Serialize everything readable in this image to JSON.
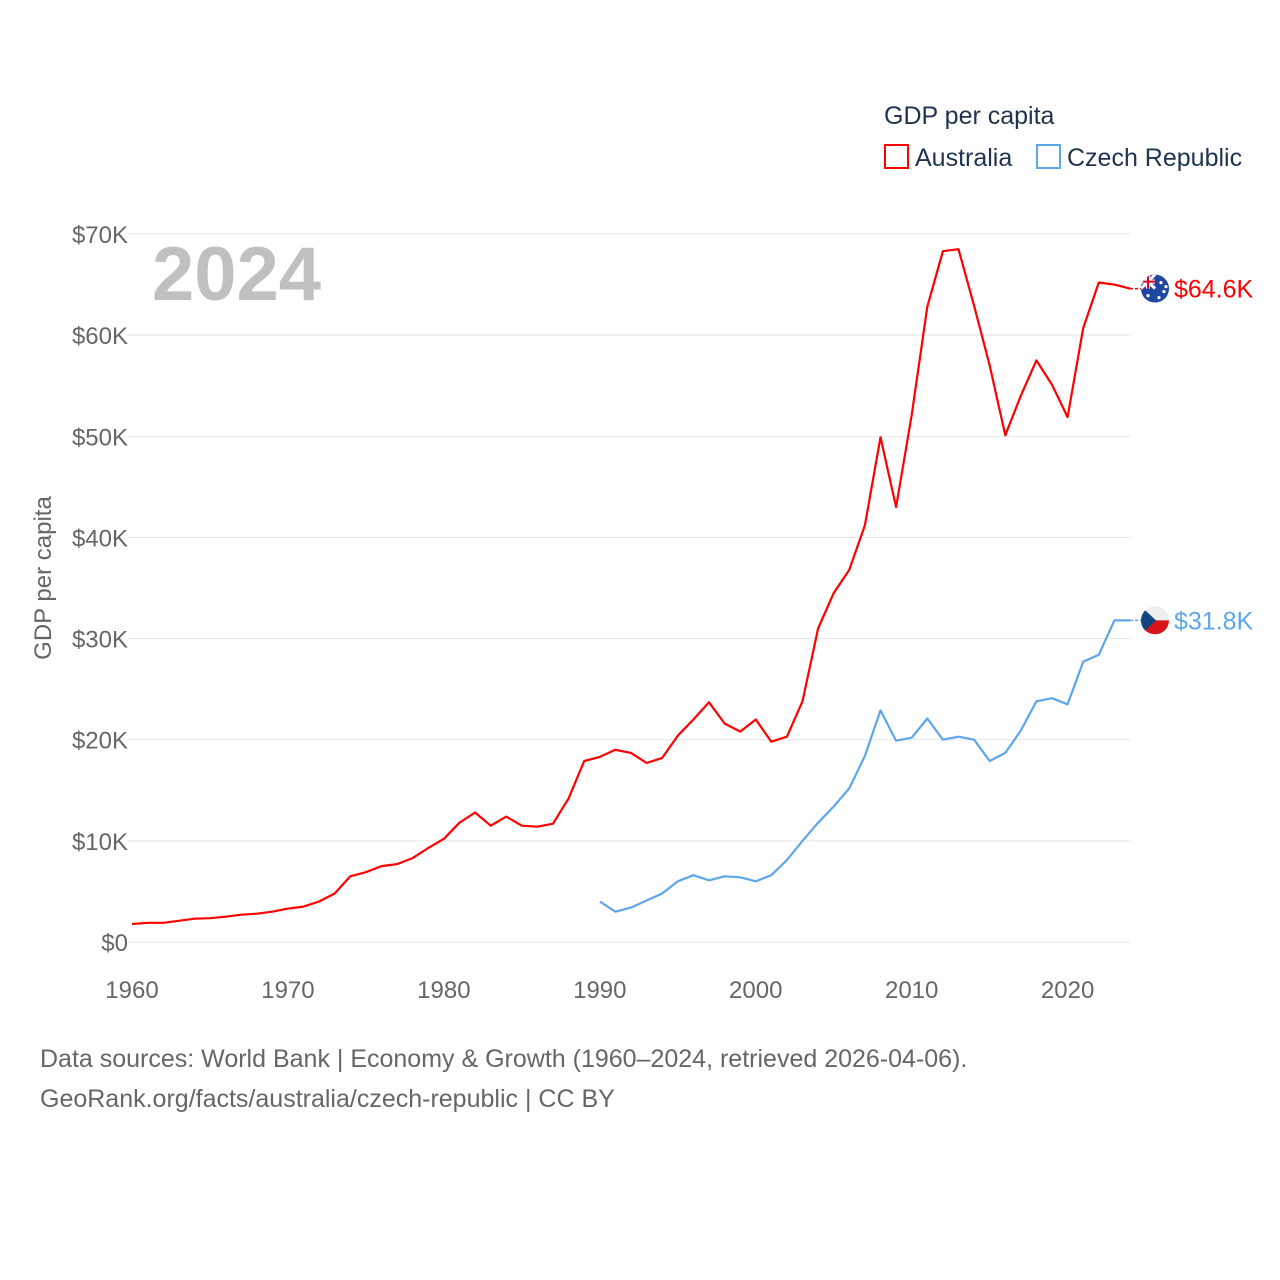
{
  "chart_data": {
    "type": "line",
    "title": "GDP per capita",
    "ylabel": "GDP per capita",
    "xlabel": "",
    "year_label": "2024",
    "xlim": [
      1960,
      2024
    ],
    "ylim": [
      0,
      70000
    ],
    "x_ticks": [
      "1960",
      "1970",
      "1980",
      "1990",
      "2000",
      "2010",
      "2020"
    ],
    "x_tick_values": [
      1960,
      1970,
      1980,
      1990,
      2000,
      2010,
      2020
    ],
    "y_ticks": [
      "$0",
      "$10K",
      "$20K",
      "$30K",
      "$40K",
      "$50K",
      "$60K",
      "$70K"
    ],
    "y_tick_values": [
      0,
      10000,
      20000,
      30000,
      40000,
      50000,
      60000,
      70000
    ],
    "grid": true,
    "legend_position": "top-right",
    "series": [
      {
        "name": "Australia",
        "color": "#ff0000",
        "end_label": "$64.6K",
        "flag": "australia-flag",
        "start_year": 1960,
        "values": [
          1.78,
          1.9,
          1.9,
          2.1,
          2.3,
          2.35,
          2.5,
          2.7,
          2.8,
          3.0,
          3.3,
          3.5,
          4.0,
          4.8,
          6.5,
          6.9,
          7.5,
          7.7,
          8.3,
          9.3,
          10.2,
          11.8,
          12.8,
          11.5,
          12.4,
          11.5,
          11.4,
          11.7,
          14.2,
          17.9,
          18.3,
          19.0,
          18.7,
          17.7,
          18.2,
          20.4,
          22.0,
          23.7,
          21.6,
          20.8,
          22.0,
          19.8,
          20.3,
          23.8,
          31.0,
          34.5,
          36.8,
          41.2,
          49.9,
          43.0,
          52.1,
          62.8,
          68.3,
          68.5,
          62.9,
          57.0,
          50.1,
          54.0,
          57.5,
          55.1,
          51.9,
          60.7,
          65.2,
          65.0,
          64.6
        ],
        "value_unit": "thousand USD"
      },
      {
        "name": "Czech Republic",
        "color": "#5ea6ea",
        "end_label": "$31.8K",
        "flag": "czech-flag",
        "start_year": 1990,
        "values": [
          4.0,
          3.0,
          3.4,
          4.1,
          4.8,
          6.0,
          6.6,
          6.1,
          6.5,
          6.4,
          6.0,
          6.6,
          8.1,
          10.0,
          11.8,
          13.4,
          15.2,
          18.4,
          22.9,
          19.9,
          20.2,
          22.1,
          20.0,
          20.3,
          20.0,
          17.9,
          18.7,
          20.9,
          23.8,
          24.1,
          23.5,
          27.7,
          28.4,
          31.8,
          31.8
        ],
        "value_unit": "thousand USD"
      }
    ]
  },
  "footer": {
    "line1": "Data sources: World Bank | Economy & Growth (1960–2024, retrieved 2026-04-06).",
    "line2": "GeoRank.org/facts/australia/czech-republic | CC BY"
  }
}
